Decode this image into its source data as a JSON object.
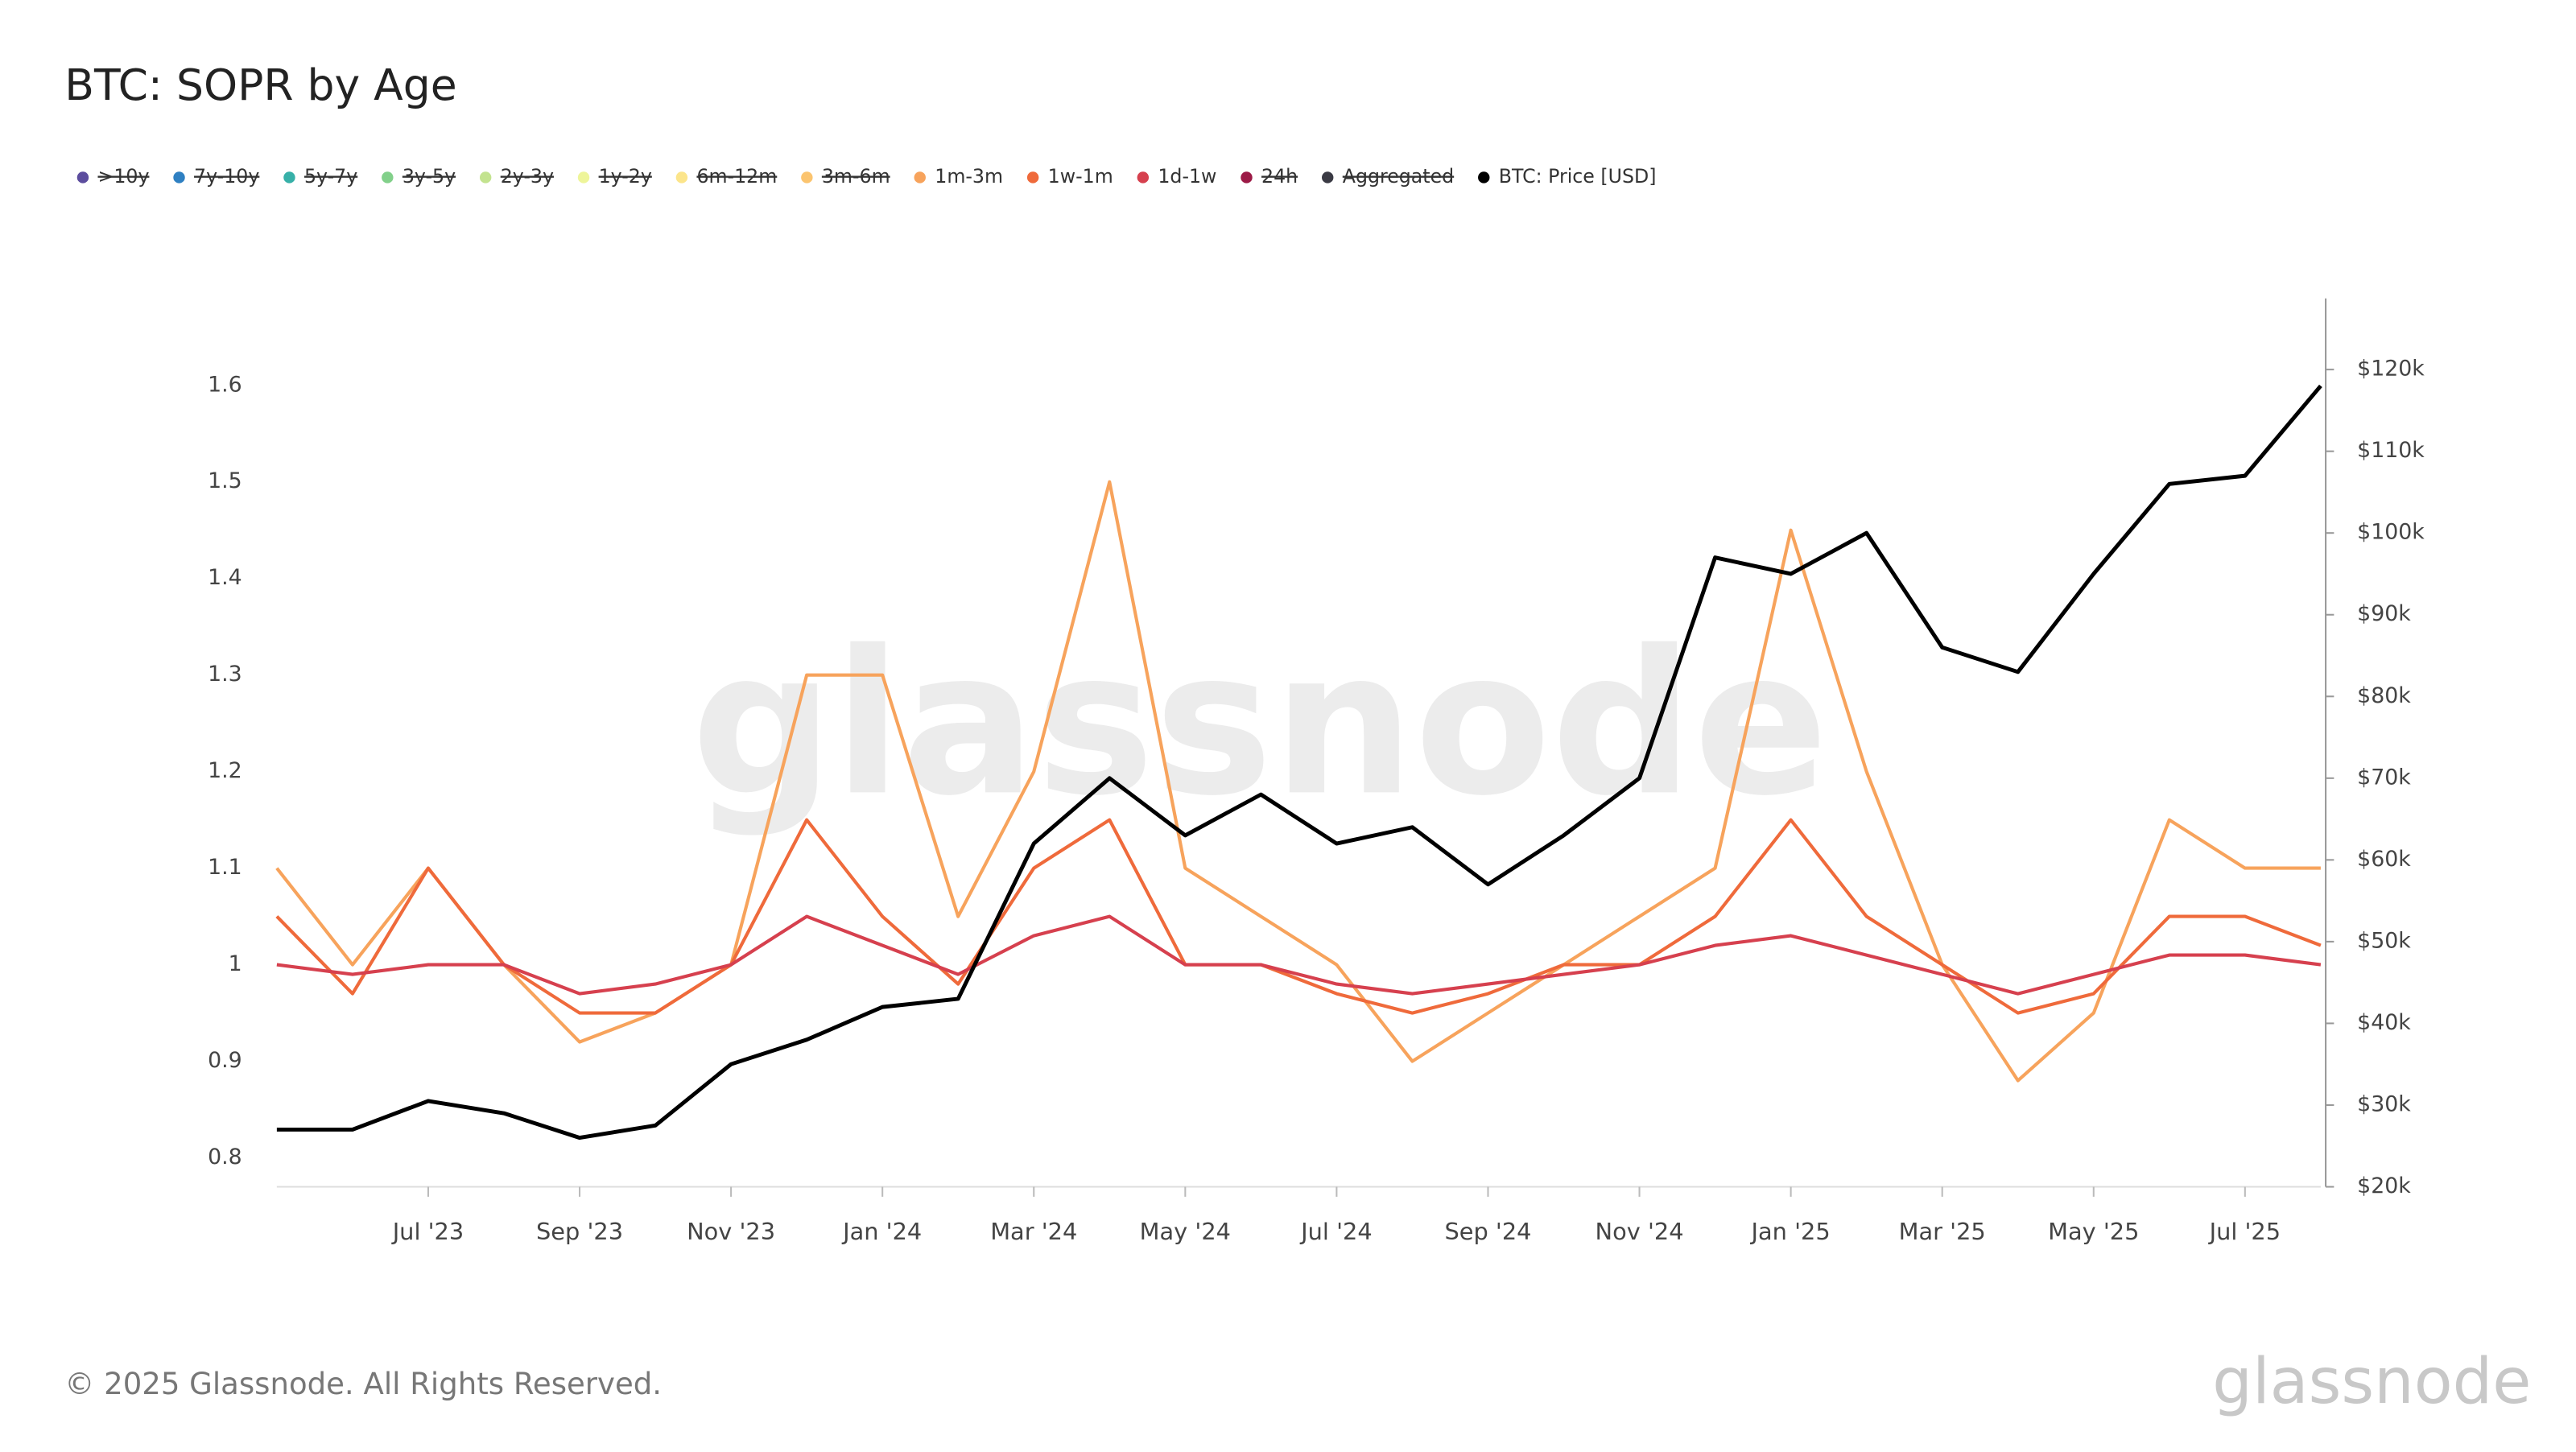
{
  "chart_data": {
    "type": "line",
    "title": "BTC: SOPR by Age",
    "x": [
      "2023-05",
      "2023-06",
      "2023-07",
      "2023-08",
      "2023-09",
      "2023-10",
      "2023-11",
      "2023-12",
      "2024-01",
      "2024-02",
      "2024-03",
      "2024-04",
      "2024-05",
      "2024-06",
      "2024-07",
      "2024-08",
      "2024-09",
      "2024-10",
      "2024-11",
      "2024-12",
      "2025-01",
      "2025-02",
      "2025-03",
      "2025-04",
      "2025-05",
      "2025-06",
      "2025-07",
      "2025-08"
    ],
    "xlim": [
      "2023-05",
      "2025-08"
    ],
    "xticks": [
      {
        "value": "2023-07",
        "label": "Jul '23"
      },
      {
        "value": "2023-09",
        "label": "Sep '23"
      },
      {
        "value": "2023-11",
        "label": "Nov '23"
      },
      {
        "value": "2024-01",
        "label": "Jan '24"
      },
      {
        "value": "2024-03",
        "label": "Mar '24"
      },
      {
        "value": "2024-05",
        "label": "May '24"
      },
      {
        "value": "2024-07",
        "label": "Jul '24"
      },
      {
        "value": "2024-09",
        "label": "Sep '24"
      },
      {
        "value": "2024-11",
        "label": "Nov '24"
      },
      {
        "value": "2025-01",
        "label": "Jan '25"
      },
      {
        "value": "2025-03",
        "label": "Mar '25"
      },
      {
        "value": "2025-05",
        "label": "May '25"
      },
      {
        "value": "2025-07",
        "label": "Jul '25"
      }
    ],
    "ylim": [
      0.77,
      1.69
    ],
    "yticks": [
      0.8,
      0.9,
      1,
      1.1,
      1.2,
      1.3,
      1.4,
      1.5,
      1.6
    ],
    "y2lim": [
      20000,
      128700
    ],
    "y2ticks": [
      {
        "value": 20000,
        "label": "$20k"
      },
      {
        "value": 30000,
        "label": "$30k"
      },
      {
        "value": 40000,
        "label": "$40k"
      },
      {
        "value": 50000,
        "label": "$50k"
      },
      {
        "value": 60000,
        "label": "$60k"
      },
      {
        "value": 70000,
        "label": "$70k"
      },
      {
        "value": 80000,
        "label": "$80k"
      },
      {
        "value": 90000,
        "label": "$90k"
      },
      {
        "value": 100000,
        "label": "$100k"
      },
      {
        "value": 110000,
        "label": "$110k"
      },
      {
        "value": 120000,
        "label": "$120k"
      }
    ],
    "series": [
      {
        "name": ">10y",
        "color": "#5c4d9e",
        "hidden": true
      },
      {
        "name": "7y-10y",
        "color": "#2f80c2",
        "hidden": true
      },
      {
        "name": "5y-7y",
        "color": "#37b0a8",
        "hidden": true
      },
      {
        "name": "3y-5y",
        "color": "#82d08a",
        "hidden": true
      },
      {
        "name": "2y-3y",
        "color": "#c3e38f",
        "hidden": true
      },
      {
        "name": "1y-2y",
        "color": "#eef59a",
        "hidden": true
      },
      {
        "name": "6m-12m",
        "color": "#fce58b",
        "hidden": true
      },
      {
        "name": "3m-6m",
        "color": "#fbc46f",
        "hidden": true
      },
      {
        "name": "1m-3m",
        "color": "#f7a35c",
        "values": [
          1.1,
          1.0,
          1.1,
          1.0,
          0.92,
          0.95,
          1.0,
          1.3,
          1.3,
          1.05,
          1.2,
          1.5,
          1.1,
          1.05,
          1.0,
          0.9,
          0.95,
          1.0,
          1.05,
          1.1,
          1.45,
          1.2,
          1.0,
          0.88,
          0.95,
          1.15,
          1.1,
          1.1
        ]
      },
      {
        "name": "1w-1m",
        "color": "#ef6a3b",
        "values": [
          1.05,
          0.97,
          1.1,
          1.0,
          0.95,
          0.95,
          1.0,
          1.15,
          1.05,
          0.98,
          1.1,
          1.15,
          1.0,
          1.0,
          0.97,
          0.95,
          0.97,
          1.0,
          1.0,
          1.05,
          1.15,
          1.05,
          1.0,
          0.95,
          0.97,
          1.05,
          1.05,
          1.02
        ]
      },
      {
        "name": "1d-1w",
        "color": "#d6404e",
        "values": [
          1.0,
          0.99,
          1.0,
          1.0,
          0.97,
          0.98,
          1.0,
          1.05,
          1.02,
          0.99,
          1.03,
          1.05,
          1.0,
          1.0,
          0.98,
          0.97,
          0.98,
          0.99,
          1.0,
          1.02,
          1.03,
          1.01,
          0.99,
          0.97,
          0.99,
          1.01,
          1.01,
          1.0
        ]
      },
      {
        "name": "24h",
        "color": "#9c1a46",
        "hidden": true
      },
      {
        "name": "Aggregated",
        "color": "#3a3a44",
        "hidden": true
      },
      {
        "name": "BTC: Price [USD]",
        "color": "#000000",
        "axis": "y2",
        "values": [
          27000,
          27000,
          30500,
          29000,
          26000,
          27500,
          35000,
          38000,
          42000,
          43000,
          62000,
          70000,
          63000,
          68000,
          62000,
          64000,
          57000,
          63000,
          70000,
          97000,
          95000,
          100000,
          86000,
          83000,
          95000,
          106000,
          107000,
          118000
        ]
      }
    ],
    "footer": "© 2025 Glassnode. All Rights Reserved.",
    "watermark": "glassnode"
  }
}
